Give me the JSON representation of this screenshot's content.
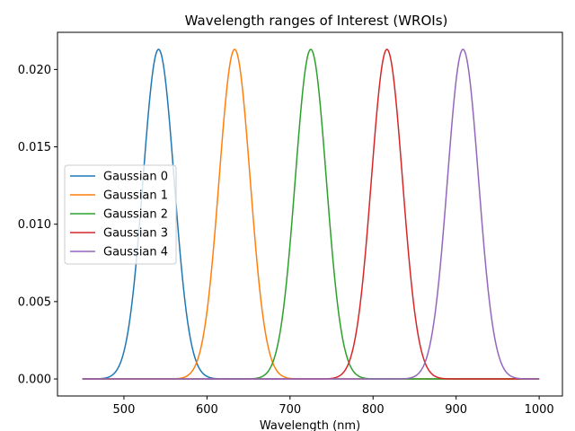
{
  "chart_data": {
    "type": "line",
    "title": "Wavelength ranges of Interest (WROIs)",
    "xlabel": "Wavelength (nm)",
    "ylabel": "",
    "xlim": [
      420,
      1028
    ],
    "ylim": [
      -0.0011,
      0.0224
    ],
    "x_ticks": [
      500,
      600,
      700,
      800,
      900,
      1000
    ],
    "y_ticks": [
      0.0,
      0.005,
      0.01,
      0.015,
      0.02
    ],
    "y_tick_labels": [
      "0.000",
      "0.005",
      "0.010",
      "0.015",
      "0.020"
    ],
    "x_range": [
      450,
      1000
    ],
    "grid": false,
    "legend_position": "center-left",
    "series": [
      {
        "name": "Gaussian 0",
        "mean": 541.7,
        "sigma": 18.7,
        "peak": 0.0213,
        "color": "#1f77b4"
      },
      {
        "name": "Gaussian 1",
        "mean": 633.3,
        "sigma": 18.7,
        "peak": 0.0213,
        "color": "#ff7f0e"
      },
      {
        "name": "Gaussian 2",
        "mean": 725.0,
        "sigma": 18.7,
        "peak": 0.0213,
        "color": "#2ca02c"
      },
      {
        "name": "Gaussian 3",
        "mean": 816.7,
        "sigma": 18.7,
        "peak": 0.0213,
        "color": "#d62728"
      },
      {
        "name": "Gaussian 4",
        "mean": 908.3,
        "sigma": 18.7,
        "peak": 0.0213,
        "color": "#9467bd"
      }
    ]
  }
}
